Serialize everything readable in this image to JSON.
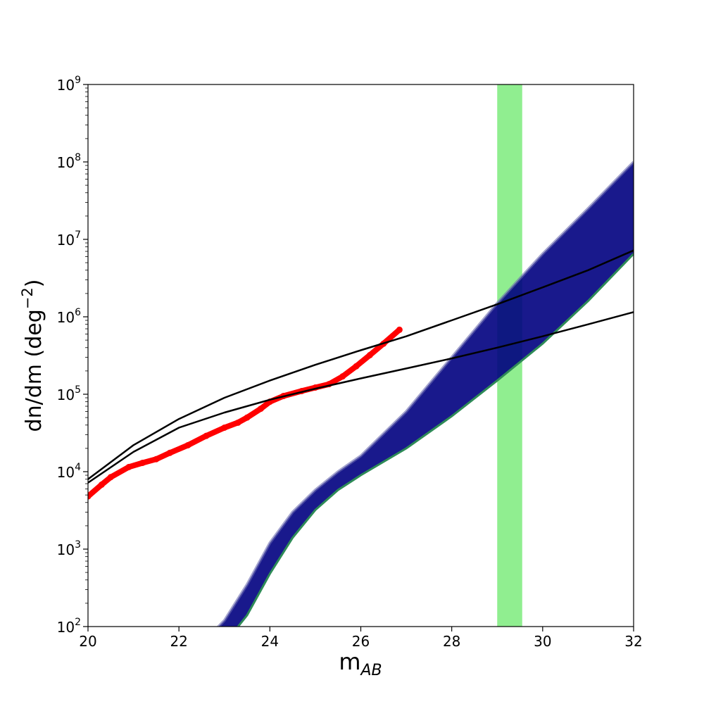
{
  "chart_data": {
    "type": "line",
    "title": "",
    "xlabel": "m",
    "xlabel_sub": "AB",
    "ylabel": "dn/dm (deg",
    "ylabel_sup": "−2",
    "ylabel_close": ")",
    "xlim": [
      20,
      32
    ],
    "ylim": [
      100,
      1000000000
    ],
    "yscale": "log",
    "grid": false,
    "legend": "none",
    "x_ticks": [
      20,
      22,
      24,
      26,
      28,
      30,
      32
    ],
    "y_ticks": [
      {
        "value": 100,
        "base": "10",
        "exp": "2"
      },
      {
        "value": 1000,
        "base": "10",
        "exp": "3"
      },
      {
        "value": 10000,
        "base": "10",
        "exp": "4"
      },
      {
        "value": 100000,
        "base": "10",
        "exp": "5"
      },
      {
        "value": 1000000,
        "base": "10",
        "exp": "6"
      },
      {
        "value": 10000000,
        "base": "10",
        "exp": "7"
      },
      {
        "value": 100000000,
        "base": "10",
        "exp": "8"
      },
      {
        "value": 1000000000,
        "base": "10",
        "exp": "9"
      }
    ],
    "band": {
      "x0": 29.0,
      "x1": 29.55,
      "color": "#90ee90"
    },
    "series": [
      {
        "kind": "observed",
        "color": "#ff0000",
        "x": [
          20.0,
          20.3,
          20.5,
          20.9,
          21.2,
          21.5,
          21.8,
          22.2,
          22.6,
          23.0,
          23.3,
          23.5,
          23.8,
          24.0,
          24.3,
          24.7,
          25.0,
          25.3,
          25.6,
          25.9,
          26.2,
          26.5,
          26.85
        ],
        "y": [
          4800,
          6800,
          8500,
          11500,
          13000,
          14500,
          17500,
          22000,
          29000,
          37000,
          43000,
          50000,
          65000,
          80000,
          95000,
          110000,
          122000,
          135000,
          170000,
          230000,
          320000,
          450000,
          680000
        ]
      },
      {
        "kind": "model-upper",
        "color": "#000000",
        "x": [
          20,
          21,
          22,
          23,
          24,
          25,
          26,
          27,
          28,
          29,
          30,
          31,
          32
        ],
        "y": [
          8000,
          22000,
          48000,
          90000,
          150000,
          240000,
          370000,
          560000,
          900000,
          1450000,
          2400000,
          4000000,
          7200000
        ]
      },
      {
        "kind": "model-lower",
        "color": "#000000",
        "x": [
          20,
          21,
          22,
          23,
          24,
          25,
          26,
          27,
          28,
          29,
          30,
          31,
          32
        ],
        "y": [
          7200,
          18000,
          37000,
          58000,
          85000,
          118000,
          160000,
          215000,
          290000,
          400000,
          560000,
          800000,
          1150000
        ]
      }
    ],
    "model_band": {
      "color": "#000080",
      "edge_color": "#2e8b57",
      "x": [
        22.5,
        23.0,
        23.5,
        24.0,
        24.5,
        25.0,
        25.5,
        26.0,
        27.0,
        28.0,
        29.0,
        30.0,
        31.0,
        32.0
      ],
      "y_low": [
        45,
        60,
        140,
        480,
        1400,
        3200,
        5800,
        9000,
        20000,
        52000,
        150000,
        450000,
        1600000,
        6500000
      ],
      "y_high": [
        60,
        120,
        350,
        1200,
        3000,
        5800,
        10000,
        16000,
        60000,
        300000,
        1500000,
        6500000,
        25000000,
        100000000
      ]
    }
  }
}
